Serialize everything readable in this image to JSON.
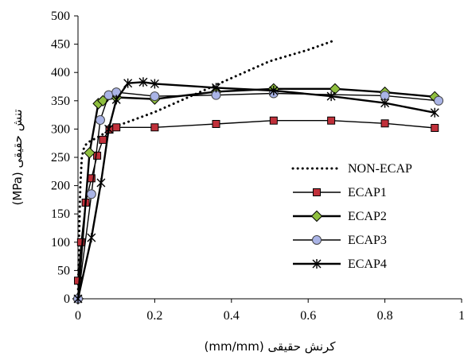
{
  "chart_data": {
    "type": "line",
    "title": "",
    "xlabel": "کرنش حقیقی (mm/mm)",
    "ylabel": "تنش حقیقی (MPa)",
    "xlim": [
      0,
      1
    ],
    "ylim": [
      0,
      500
    ],
    "xticks": [
      0,
      0.2,
      0.4,
      0.6,
      0.8,
      1
    ],
    "xtick_labels": [
      "0",
      "0.2",
      "0.4",
      "0.6",
      "0.8",
      "1"
    ],
    "yticks": [
      0,
      50,
      100,
      150,
      200,
      250,
      300,
      350,
      400,
      450,
      500
    ],
    "ytick_labels": [
      "0",
      "50",
      "100",
      "150",
      "200",
      "250",
      "300",
      "350",
      "400",
      "450",
      "500"
    ],
    "grid": false,
    "legend": "center-right",
    "series": [
      {
        "name": "NON-ECAP",
        "style": "dotted",
        "marker": "none",
        "color": "#000000",
        "x": [
          0,
          0.003,
          0.006,
          0.01,
          0.015,
          0.02,
          0.03,
          0.05,
          0.1,
          0.2,
          0.3,
          0.4,
          0.5,
          0.6,
          0.67
        ],
        "y": [
          0,
          110,
          200,
          250,
          265,
          272,
          278,
          285,
          305,
          330,
          360,
          390,
          420,
          440,
          457
        ]
      },
      {
        "name": "ECAP1",
        "style": "solid",
        "marker": "square",
        "color": "#c0303a",
        "x": [
          0,
          0.008,
          0.02,
          0.035,
          0.05,
          0.065,
          0.082,
          0.1,
          0.2,
          0.36,
          0.51,
          0.66,
          0.8,
          0.93
        ],
        "y": [
          32,
          100,
          170,
          213,
          253,
          281,
          299,
          303,
          303,
          309,
          315,
          315,
          310,
          302
        ]
      },
      {
        "name": "ECAP2",
        "style": "solid",
        "marker": "diamond",
        "color": "#8fbf3f",
        "x": [
          0,
          0.03,
          0.053,
          0.065,
          0.1,
          0.2,
          0.36,
          0.51,
          0.67,
          0.8,
          0.93
        ],
        "y": [
          0,
          258,
          345,
          350,
          356,
          353,
          366,
          371,
          371,
          365,
          357
        ]
      },
      {
        "name": "ECAP3",
        "style": "solid",
        "marker": "circle",
        "color": "#aab4e6",
        "x": [
          0,
          0.035,
          0.058,
          0.08,
          0.1,
          0.2,
          0.36,
          0.51,
          0.8,
          0.94
        ],
        "y": [
          0,
          185,
          316,
          360,
          365,
          358,
          360,
          363,
          359,
          350
        ]
      },
      {
        "name": "ECAP4",
        "style": "solid",
        "marker": "star",
        "color": "#000000",
        "x": [
          0,
          0.035,
          0.06,
          0.08,
          0.1,
          0.13,
          0.17,
          0.2,
          0.36,
          0.51,
          0.66,
          0.8,
          0.93
        ],
        "y": [
          0,
          108,
          205,
          300,
          352,
          381,
          383,
          380,
          373,
          368,
          358,
          346,
          329
        ]
      }
    ]
  }
}
